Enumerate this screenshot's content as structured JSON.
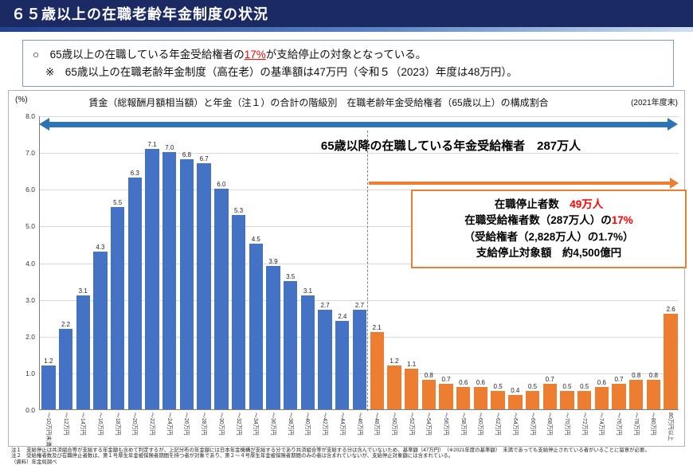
{
  "header": {
    "title": "６５歳以上の在職老齢年金制度の状況"
  },
  "summary": {
    "line1_prefix": "○　65歳以上の在職している年金受給権者の",
    "line1_highlight": "17%",
    "line1_suffix": "が支給停止の対象となっている。",
    "line2": "※　65歳以上の在職老齢年金制度（高在老）の基準額は47万円（令和５（2023）年度は48万円）。"
  },
  "colors": {
    "header_bg": "#1b2a63",
    "accent_red": "#ff0000",
    "arrow_blue": "#2e74b5",
    "arrow_orange": "#ed7d31",
    "panel_border": "#b3b3b3",
    "box_border": "#7f9cc4"
  },
  "chart_data": {
    "type": "bar",
    "title": "賃金（総報酬月額相当額）と年金（注１）の合計の階級別　在職老齢年金受給権者（65歳以上）の構成割合",
    "unit_label": "(%)",
    "period_label": "(2021年度末)",
    "ylim": [
      0,
      8
    ],
    "yticks": [
      "0.0",
      "1.0",
      "2.0",
      "3.0",
      "4.0",
      "5.0",
      "6.0",
      "7.0",
      "8.0"
    ],
    "grid": true,
    "legend": "none",
    "categories": [
      "～10万円未満",
      "～12万円",
      "～14万円",
      "～16万円",
      "～18万円",
      "～20万円",
      "～22万円",
      "～24万円",
      "～26万円",
      "～28万円",
      "～30万円",
      "～32万円",
      "～34万円",
      "～36万円",
      "～38万円",
      "～40万円",
      "～42万円",
      "～44万円",
      "～46万円",
      "～48万円",
      "～50万円",
      "～52万円",
      "～54万円",
      "～56万円",
      "～58万円",
      "～60万円",
      "～62万円",
      "～64万円",
      "～66万円",
      "～68万円",
      "～70万円",
      "～72万円",
      "～74万円",
      "～76万円",
      "～78万円",
      "～80万円",
      "80万円以上"
    ],
    "values": [
      1.2,
      2.2,
      3.1,
      4.3,
      5.5,
      6.3,
      7.1,
      7.0,
      6.8,
      6.7,
      6.0,
      5.3,
      4.5,
      3.9,
      3.5,
      3.1,
      2.7,
      2.4,
      2.7,
      2.1,
      1.2,
      1.1,
      0.8,
      0.7,
      0.6,
      0.6,
      0.5,
      0.4,
      0.5,
      0.7,
      0.5,
      0.5,
      0.6,
      0.7,
      0.8,
      0.8,
      2.6
    ],
    "split_index": 19,
    "colors": {
      "active": "#4472c4",
      "suspended": "#ed7d31"
    },
    "top_arrow_label": "65歳以降の在職している年金受給権者　287万人",
    "annotation": {
      "line1_prefix": "在職停止者数　",
      "line1_value": "49万人",
      "line2_prefix": "在職受給権者数（287万人）の",
      "line2_value": "17%",
      "line3": "（受給権者（2,828万人）の1.7%）",
      "line4": "支給停止対象額　約4,500億円"
    }
  },
  "footnotes": {
    "note1": "注１　支給停止は共済組合等が支給する年金額も含めて判定するが、上記分布の年金額には日本年金機構が支給する分であり共済組合等が支給する分は含んでいないため、基準額（47万円）　（※2021年度の基準額）　未満であっても支給停止されている者がいることに留意が必要。",
    "note2": "注２　受給権者数及び在職停止者数は、第１号厚生年金被保険者期間を持つ者が対象であり、第２～４号厚生年金被保険者期間のみの者は含まれていないが、支給停止対象額には含まれている。",
    "source": "（資料）年金局調べ"
  }
}
